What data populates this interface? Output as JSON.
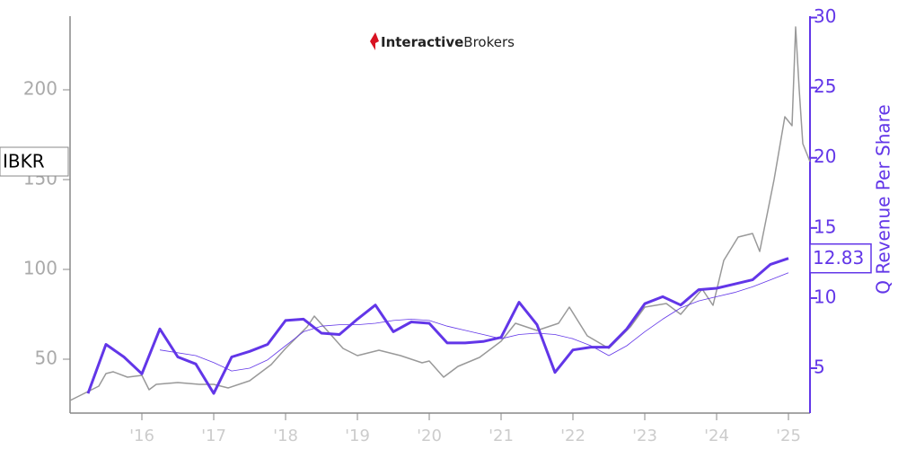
{
  "chart_data": {
    "type": "line",
    "logo": {
      "bold": "Interactive",
      "regular": "Brokers"
    },
    "y2_label": "Q Revenue Per Share",
    "xlim": [
      2015.0,
      2025.3
    ],
    "xticks": [
      {
        "value": 2016,
        "label": "'16"
      },
      {
        "value": 2017,
        "label": "'17"
      },
      {
        "value": 2018,
        "label": "'18"
      },
      {
        "value": 2019,
        "label": "'19"
      },
      {
        "value": 2020,
        "label": "'20"
      },
      {
        "value": 2021,
        "label": "'21"
      },
      {
        "value": 2022,
        "label": "'22"
      },
      {
        "value": 2023,
        "label": "'23"
      },
      {
        "value": 2024,
        "label": "'24"
      },
      {
        "value": 2025,
        "label": "'25"
      }
    ],
    "ylim": [
      20,
      241
    ],
    "yticks": [
      50,
      100,
      150,
      200
    ],
    "y2lim": [
      1.8,
      30.1
    ],
    "y2ticks": [
      5,
      10,
      15,
      20,
      25,
      30
    ],
    "series": [
      {
        "name": "IBKR",
        "color": "#999999",
        "width": 1.5,
        "x": [
          2015.0,
          2015.2,
          2015.4,
          2015.5,
          2015.6,
          2015.8,
          2016.0,
          2016.1,
          2016.2,
          2016.5,
          2016.8,
          2017.0,
          2017.2,
          2017.5,
          2017.8,
          2018.0,
          2018.3,
          2018.4,
          2018.6,
          2018.8,
          2019.0,
          2019.3,
          2019.6,
          2019.9,
          2020.0,
          2020.2,
          2020.4,
          2020.7,
          2021.0,
          2021.2,
          2021.5,
          2021.8,
          2021.95,
          2022.2,
          2022.5,
          2022.8,
          2023.0,
          2023.3,
          2023.5,
          2023.8,
          2023.95,
          2024.1,
          2024.3,
          2024.5,
          2024.6,
          2024.8,
          2024.95,
          2025.05,
          2025.1,
          2025.15,
          2025.2,
          2025.3
        ],
        "values": [
          27,
          31,
          35,
          42,
          43,
          40,
          41,
          33,
          36,
          37,
          36,
          36,
          34,
          38,
          47,
          56,
          68,
          74,
          65,
          56,
          52,
          55,
          52,
          48,
          49,
          40,
          46,
          51,
          60,
          70,
          66,
          70,
          79,
          63,
          56,
          68,
          79,
          81,
          75,
          89,
          80,
          105,
          118,
          120,
          110,
          150,
          185,
          180,
          235,
          200,
          170,
          160
        ]
      },
      {
        "color": "#6236e8",
        "width": 3,
        "axis": "y2",
        "x": [
          2015.25,
          2015.5,
          2015.75,
          2016.0,
          2016.25,
          2016.5,
          2016.75,
          2017.0,
          2017.25,
          2017.5,
          2017.75,
          2018.0,
          2018.25,
          2018.5,
          2018.75,
          2019.0,
          2019.25,
          2019.5,
          2019.75,
          2020.0,
          2020.25,
          2020.5,
          2020.75,
          2021.0,
          2021.25,
          2021.5,
          2021.75,
          2022.0,
          2022.25,
          2022.5,
          2022.75,
          2023.0,
          2023.25,
          2023.5,
          2023.75,
          2024.0,
          2024.25,
          2024.5,
          2024.75,
          2025.0
        ],
        "values": [
          3.2,
          6.7,
          5.8,
          4.6,
          7.8,
          5.8,
          5.3,
          3.2,
          5.8,
          6.2,
          6.7,
          8.4,
          8.5,
          7.5,
          7.4,
          8.5,
          9.5,
          7.6,
          8.3,
          8.2,
          6.8,
          6.8,
          6.9,
          7.2,
          9.7,
          8.1,
          4.7,
          6.3,
          6.5,
          6.5,
          7.8,
          9.6,
          10.1,
          9.5,
          10.6,
          10.7,
          11.0,
          11.3,
          12.4,
          12.83
        ]
      },
      {
        "color": "#6236e8",
        "width": 0.8,
        "axis": "y2",
        "x": [
          2016.25,
          2016.75,
          2017.0,
          2017.25,
          2017.5,
          2017.75,
          2018.0,
          2018.25,
          2018.5,
          2018.75,
          2019.0,
          2019.25,
          2019.5,
          2019.75,
          2020.0,
          2020.25,
          2020.5,
          2020.75,
          2021.0,
          2021.25,
          2021.5,
          2021.75,
          2022.0,
          2022.25,
          2022.5,
          2022.75,
          2023.0,
          2023.25,
          2023.5,
          2023.75,
          2024.0,
          2024.25,
          2024.5,
          2024.75,
          2025.0
        ],
        "values": [
          6.3,
          5.9,
          5.4,
          4.8,
          5.0,
          5.6,
          6.6,
          7.6,
          8.0,
          8.1,
          8.1,
          8.2,
          8.4,
          8.5,
          8.4,
          8.0,
          7.7,
          7.4,
          7.1,
          7.4,
          7.5,
          7.4,
          7.1,
          6.6,
          5.9,
          6.6,
          7.6,
          8.5,
          9.3,
          9.8,
          10.1,
          10.4,
          10.8,
          11.3,
          11.8
        ]
      }
    ]
  }
}
